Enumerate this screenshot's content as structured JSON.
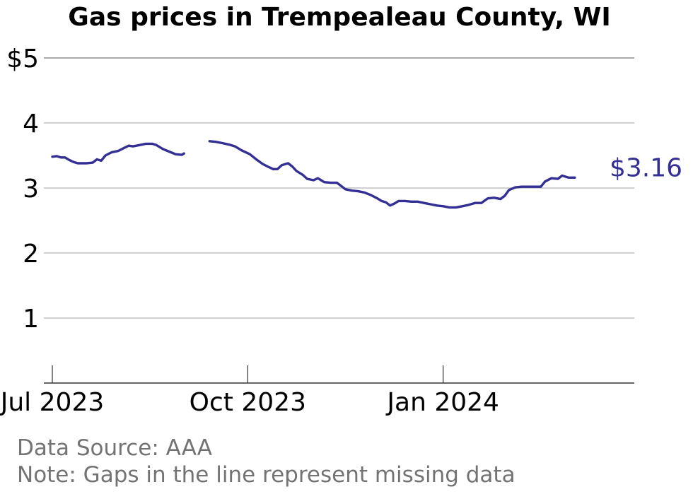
{
  "source_note": "Data Source: AAA",
  "gap_note": "Note: Gaps in the line represent missing data",
  "colors": {
    "line": "#332f94",
    "grid": "#b3b3b3",
    "axis": "#333333",
    "note": "#737373"
  },
  "chart_data": {
    "type": "line",
    "title": "Gas prices in Trempealeau County, WI",
    "xlabel": "",
    "ylabel": "",
    "ylim": [
      0,
      5
    ],
    "y_ticks": [
      1,
      2,
      3,
      4,
      5
    ],
    "y_tick_labels": [
      "1",
      "2",
      "3",
      "4",
      "$5"
    ],
    "x_range": [
      "2023-06-28",
      "2024-03-31"
    ],
    "x_ticks": [
      "2023-07-01",
      "2023-10-01",
      "2024-01-01"
    ],
    "x_tick_labels": [
      "Jul 2023",
      "Oct 2023",
      "Jan 2024"
    ],
    "grid": true,
    "end_label": "$3.16",
    "series": [
      {
        "segments": [
          [
            [
              "2023-07-01",
              3.48
            ],
            [
              "2023-07-03",
              3.49
            ],
            [
              "2023-07-05",
              3.47
            ],
            [
              "2023-07-07",
              3.47
            ],
            [
              "2023-07-09",
              3.43
            ],
            [
              "2023-07-11",
              3.4
            ],
            [
              "2023-07-13",
              3.38
            ],
            [
              "2023-07-15",
              3.38
            ],
            [
              "2023-07-17",
              3.38
            ],
            [
              "2023-07-20",
              3.39
            ],
            [
              "2023-07-22",
              3.44
            ],
            [
              "2023-07-24",
              3.42
            ],
            [
              "2023-07-26",
              3.5
            ],
            [
              "2023-07-29",
              3.55
            ],
            [
              "2023-08-01",
              3.57
            ],
            [
              "2023-08-04",
              3.62
            ],
            [
              "2023-08-06",
              3.65
            ],
            [
              "2023-08-08",
              3.64
            ],
            [
              "2023-08-11",
              3.66
            ],
            [
              "2023-08-14",
              3.68
            ],
            [
              "2023-08-17",
              3.68
            ],
            [
              "2023-08-19",
              3.66
            ],
            [
              "2023-08-22",
              3.6
            ],
            [
              "2023-08-25",
              3.56
            ],
            [
              "2023-08-28",
              3.52
            ],
            [
              "2023-08-31",
              3.51
            ],
            [
              "2023-09-01",
              3.53
            ]
          ],
          [
            [
              "2023-09-13",
              3.72
            ],
            [
              "2023-09-16",
              3.71
            ],
            [
              "2023-09-19",
              3.69
            ],
            [
              "2023-09-22",
              3.67
            ],
            [
              "2023-09-25",
              3.64
            ],
            [
              "2023-09-28",
              3.58
            ],
            [
              "2023-10-02",
              3.52
            ],
            [
              "2023-10-05",
              3.44
            ],
            [
              "2023-10-08",
              3.37
            ],
            [
              "2023-10-11",
              3.32
            ],
            [
              "2023-10-13",
              3.29
            ],
            [
              "2023-10-15",
              3.29
            ],
            [
              "2023-10-17",
              3.35
            ],
            [
              "2023-10-20",
              3.38
            ],
            [
              "2023-10-22",
              3.33
            ],
            [
              "2023-10-24",
              3.26
            ],
            [
              "2023-10-27",
              3.2
            ],
            [
              "2023-10-29",
              3.14
            ],
            [
              "2023-11-01",
              3.12
            ],
            [
              "2023-11-03",
              3.15
            ],
            [
              "2023-11-06",
              3.09
            ],
            [
              "2023-11-09",
              3.08
            ],
            [
              "2023-11-12",
              3.08
            ],
            [
              "2023-11-14",
              3.03
            ],
            [
              "2023-11-16",
              2.98
            ],
            [
              "2023-11-19",
              2.96
            ],
            [
              "2023-11-22",
              2.95
            ],
            [
              "2023-11-25",
              2.93
            ],
            [
              "2023-11-28",
              2.89
            ],
            [
              "2023-12-01",
              2.84
            ],
            [
              "2023-12-03",
              2.8
            ],
            [
              "2023-12-05",
              2.78
            ],
            [
              "2023-12-07",
              2.73
            ],
            [
              "2023-12-09",
              2.76
            ],
            [
              "2023-12-11",
              2.8
            ],
            [
              "2023-12-14",
              2.8
            ],
            [
              "2023-12-17",
              2.79
            ],
            [
              "2023-12-20",
              2.79
            ],
            [
              "2023-12-23",
              2.77
            ],
            [
              "2023-12-26",
              2.75
            ],
            [
              "2023-12-29",
              2.73
            ],
            [
              "2024-01-01",
              2.72
            ],
            [
              "2024-01-04",
              2.7
            ],
            [
              "2024-01-07",
              2.7
            ],
            [
              "2024-01-10",
              2.72
            ],
            [
              "2024-01-13",
              2.74
            ],
            [
              "2024-01-16",
              2.77
            ],
            [
              "2024-01-19",
              2.77
            ],
            [
              "2024-01-22",
              2.84
            ],
            [
              "2024-01-25",
              2.85
            ],
            [
              "2024-01-28",
              2.83
            ],
            [
              "2024-01-30",
              2.88
            ],
            [
              "2024-02-01",
              2.97
            ],
            [
              "2024-02-04",
              3.01
            ],
            [
              "2024-02-07",
              3.02
            ],
            [
              "2024-02-10",
              3.02
            ],
            [
              "2024-02-13",
              3.02
            ],
            [
              "2024-02-16",
              3.02
            ],
            [
              "2024-02-18",
              3.1
            ],
            [
              "2024-02-21",
              3.15
            ],
            [
              "2024-02-24",
              3.14
            ],
            [
              "2024-02-26",
              3.19
            ],
            [
              "2024-02-29",
              3.16
            ],
            [
              "2024-03-03",
              3.16
            ]
          ]
        ]
      }
    ]
  }
}
